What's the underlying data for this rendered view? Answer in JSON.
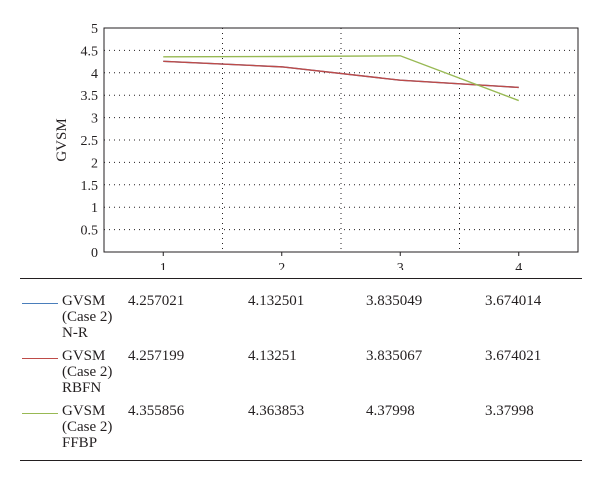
{
  "chart_data": {
    "type": "line",
    "categories": [
      "1",
      "2",
      "3",
      "4"
    ],
    "ylabel": "GVSM",
    "ylim": [
      0,
      5
    ],
    "yticks": [
      "0",
      "0.5",
      "1",
      "1.5",
      "2",
      "2.5",
      "3",
      "3.5",
      "4",
      "4.5",
      "5"
    ],
    "grid": true,
    "legend": "data-table-below",
    "series": [
      {
        "name": "GVSM (Case 2) N-R",
        "color": "#4a7ebb",
        "values": [
          4.257021,
          4.132501,
          3.835049,
          3.674014
        ],
        "labels": [
          "4.257021",
          "4.132501",
          "3.835049",
          "3.674014"
        ]
      },
      {
        "name": "GVSM (Case 2) RBFN",
        "color": "#be4b48",
        "values": [
          4.257199,
          4.13251,
          3.835067,
          3.674021
        ],
        "labels": [
          "4.257199",
          "4.13251",
          "3.835067",
          "3.674021"
        ]
      },
      {
        "name": "GVSM (Case 2) FFBP",
        "color": "#98b954",
        "values": [
          4.355856,
          4.363853,
          4.37998,
          3.37998
        ],
        "labels": [
          "4.355856",
          "4.363853",
          "4.37998",
          "3.37998"
        ]
      }
    ]
  }
}
